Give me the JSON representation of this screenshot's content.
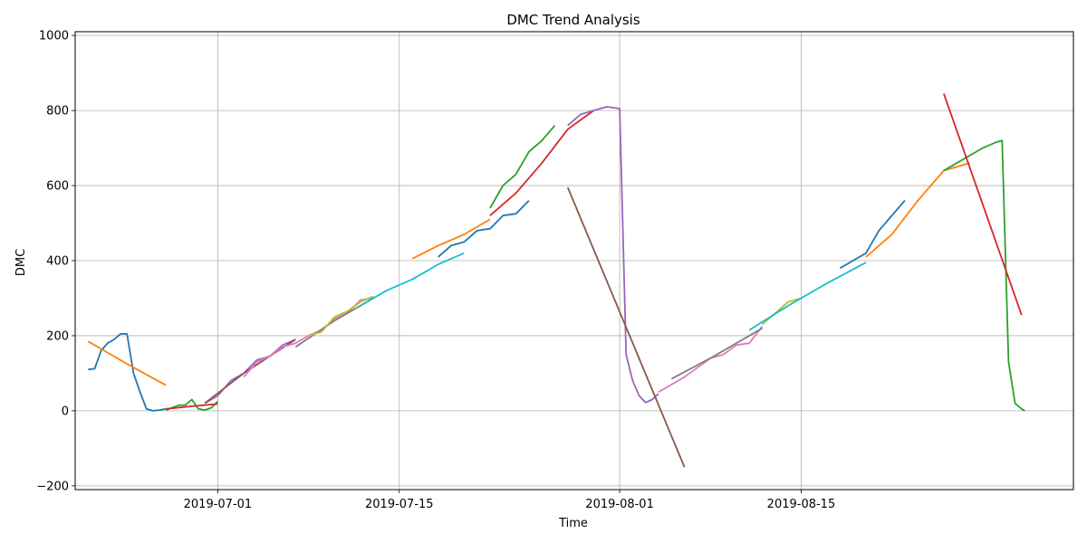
{
  "chart_data": {
    "type": "line",
    "title": "DMC Trend Analysis",
    "xlabel": "Time",
    "ylabel": "DMC",
    "grid": true,
    "legend": "none",
    "xlim": [
      "2019-06-20",
      "2019-09-05"
    ],
    "ylim": [
      -210,
      1010
    ],
    "x_ticks": [
      {
        "date": "2019-07-01",
        "label": "2019-07-01"
      },
      {
        "date": "2019-07-15",
        "label": "2019-07-15"
      },
      {
        "date": "2019-08-01",
        "label": "2019-08-01"
      },
      {
        "date": "2019-08-15",
        "label": "2019-08-15"
      }
    ],
    "y_ticks": [
      {
        "value": -200,
        "label": "−200"
      },
      {
        "value": 0,
        "label": "0"
      },
      {
        "value": 200,
        "label": "200"
      },
      {
        "value": 400,
        "label": "400"
      },
      {
        "value": 600,
        "label": "600"
      },
      {
        "value": 800,
        "label": "800"
      },
      {
        "value": 1000,
        "label": "1000"
      }
    ],
    "series": [
      {
        "color": "#1f77b4",
        "x": [
          "2019-06-21",
          "2019-06-21 12:00",
          "2019-06-22",
          "2019-06-22 12:00",
          "2019-06-23",
          "2019-06-23 12:00",
          "2019-06-24",
          "2019-06-24 12:00",
          "2019-06-25",
          "2019-06-25 12:00",
          "2019-06-26",
          "2019-06-26 12:00",
          "2019-06-27"
        ],
        "y": [
          110,
          112,
          160,
          180,
          190,
          205,
          205,
          100,
          50,
          5,
          0,
          2,
          5
        ]
      },
      {
        "color": "#ff7f0e",
        "x": [
          "2019-06-21",
          "2019-06-24",
          "2019-06-27"
        ],
        "y": [
          185,
          125,
          68
        ]
      },
      {
        "color": "#2ca02c",
        "x": [
          "2019-06-27",
          "2019-06-28",
          "2019-06-28 12:00",
          "2019-06-29",
          "2019-06-29 12:00",
          "2019-06-30",
          "2019-06-30 12:00",
          "2019-07-01"
        ],
        "y": [
          2,
          15,
          15,
          30,
          5,
          2,
          8,
          25
        ]
      },
      {
        "color": "#d62728",
        "x": [
          "2019-06-27",
          "2019-06-29",
          "2019-07-01"
        ],
        "y": [
          5,
          12,
          18
        ]
      },
      {
        "color": "#9467bd",
        "x": [
          "2019-06-30",
          "2019-07-01",
          "2019-07-02",
          "2019-07-03",
          "2019-07-04",
          "2019-07-05",
          "2019-07-06",
          "2019-07-07"
        ],
        "y": [
          20,
          40,
          80,
          100,
          135,
          145,
          175,
          190
        ]
      },
      {
        "color": "#8c564b",
        "x": [
          "2019-06-30",
          "2019-07-03",
          "2019-07-07"
        ],
        "y": [
          20,
          100,
          190
        ]
      },
      {
        "color": "#e377c2",
        "x": [
          "2019-07-03",
          "2019-07-04",
          "2019-07-05",
          "2019-07-06",
          "2019-07-07",
          "2019-07-08",
          "2019-07-09",
          "2019-07-10",
          "2019-07-11",
          "2019-07-12",
          "2019-07-13"
        ],
        "y": [
          90,
          130,
          145,
          170,
          180,
          200,
          215,
          245,
          260,
          295,
          300
        ]
      },
      {
        "color": "#7f7f7f",
        "x": [
          "2019-07-07",
          "2019-07-10",
          "2019-07-13"
        ],
        "y": [
          170,
          240,
          300
        ]
      },
      {
        "color": "#bcbd22",
        "x": [
          "2019-07-08",
          "2019-07-09",
          "2019-07-10",
          "2019-07-11",
          "2019-07-12",
          "2019-07-13"
        ],
        "y": [
          200,
          210,
          250,
          265,
          290,
          305
        ]
      },
      {
        "color": "#17becf",
        "x": [
          "2019-07-12",
          "2019-07-14",
          "2019-07-16",
          "2019-07-18",
          "2019-07-20"
        ],
        "y": [
          280,
          320,
          350,
          390,
          420
        ]
      },
      {
        "color": "#1f77b4",
        "x": [
          "2019-07-18",
          "2019-07-19",
          "2019-07-20",
          "2019-07-21",
          "2019-07-22",
          "2019-07-23",
          "2019-07-24",
          "2019-07-25"
        ],
        "y": [
          410,
          440,
          450,
          480,
          485,
          520,
          525,
          560
        ]
      },
      {
        "color": "#ff7f0e",
        "x": [
          "2019-07-16",
          "2019-07-18",
          "2019-07-20",
          "2019-07-22"
        ],
        "y": [
          405,
          440,
          470,
          510
        ]
      },
      {
        "color": "#2ca02c",
        "x": [
          "2019-07-22",
          "2019-07-23",
          "2019-07-24",
          "2019-07-25",
          "2019-07-26",
          "2019-07-27"
        ],
        "y": [
          540,
          600,
          630,
          690,
          720,
          760
        ]
      },
      {
        "color": "#d62728",
        "x": [
          "2019-07-22",
          "2019-07-24",
          "2019-07-26",
          "2019-07-28",
          "2019-07-30"
        ],
        "y": [
          520,
          580,
          660,
          750,
          800
        ]
      },
      {
        "color": "#9467bd",
        "x": [
          "2019-07-28",
          "2019-07-29",
          "2019-07-30",
          "2019-07-31",
          "2019-08-01",
          "2019-08-01 12:00",
          "2019-08-02",
          "2019-08-02 12:00",
          "2019-08-03",
          "2019-08-03 12:00",
          "2019-08-04"
        ],
        "y": [
          760,
          790,
          800,
          810,
          805,
          150,
          80,
          40,
          22,
          30,
          45
        ]
      },
      {
        "color": "#8c564b",
        "x": [
          "2019-07-28",
          "2019-08-06"
        ],
        "y": [
          595,
          -150
        ]
      },
      {
        "color": "#e377c2",
        "x": [
          "2019-08-04",
          "2019-08-05",
          "2019-08-06",
          "2019-08-07",
          "2019-08-08",
          "2019-08-09",
          "2019-08-10",
          "2019-08-11",
          "2019-08-12"
        ],
        "y": [
          50,
          70,
          90,
          115,
          140,
          150,
          175,
          180,
          225
        ]
      },
      {
        "color": "#7f7f7f",
        "x": [
          "2019-08-05",
          "2019-08-08",
          "2019-08-12"
        ],
        "y": [
          85,
          140,
          220
        ]
      },
      {
        "color": "#bcbd22",
        "x": [
          "2019-08-12",
          "2019-08-13",
          "2019-08-14",
          "2019-08-15"
        ],
        "y": [
          230,
          260,
          290,
          300
        ]
      },
      {
        "color": "#17becf",
        "x": [
          "2019-08-11",
          "2019-08-14",
          "2019-08-17",
          "2019-08-20"
        ],
        "y": [
          215,
          280,
          340,
          395
        ]
      },
      {
        "color": "#1f77b4",
        "x": [
          "2019-08-18",
          "2019-08-19",
          "2019-08-20",
          "2019-08-21",
          "2019-08-22",
          "2019-08-23"
        ],
        "y": [
          380,
          400,
          420,
          480,
          520,
          560
        ]
      },
      {
        "color": "#ff7f0e",
        "x": [
          "2019-08-20",
          "2019-08-22",
          "2019-08-24",
          "2019-08-26",
          "2019-08-28"
        ],
        "y": [
          410,
          470,
          560,
          640,
          660
        ]
      },
      {
        "color": "#2ca02c",
        "x": [
          "2019-08-26",
          "2019-08-27",
          "2019-08-28",
          "2019-08-29",
          "2019-08-30",
          "2019-08-30 12:00",
          "2019-08-31",
          "2019-08-31 12:00",
          "2019-09-01",
          "2019-09-01 06:00"
        ],
        "y": [
          640,
          660,
          680,
          700,
          715,
          720,
          130,
          20,
          5,
          0
        ]
      },
      {
        "color": "#d62728",
        "x": [
          "2019-08-26",
          "2019-09-01"
        ],
        "y": [
          845,
          255
        ]
      }
    ]
  }
}
